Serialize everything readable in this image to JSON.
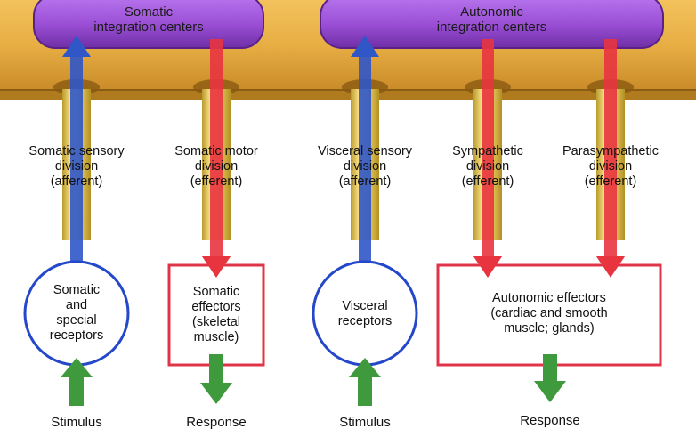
{
  "centers": {
    "somatic": {
      "line1": "Somatic",
      "line2": "integration centers"
    },
    "autonomic": {
      "line1": "Autonomic",
      "line2": "integration centers"
    }
  },
  "divisions": [
    {
      "line1": "Somatic sensory",
      "line2": "division",
      "line3": "(afferent)"
    },
    {
      "line1": "Somatic motor",
      "line2": "division",
      "line3": "(efferent)"
    },
    {
      "line1": "Visceral sensory",
      "line2": "division",
      "line3": "(afferent)"
    },
    {
      "line1": "Sympathetic",
      "line2": "division",
      "line3": "(efferent)"
    },
    {
      "line1": "Parasympathetic",
      "line2": "division",
      "line3": "(efferent)"
    }
  ],
  "nodes": {
    "somatic_receptors": {
      "line1": "Somatic",
      "line2": "and",
      "line3": "special",
      "line4": "receptors"
    },
    "somatic_effectors": {
      "line1": "Somatic",
      "line2": "effectors",
      "line3": "(skeletal",
      "line4": "muscle)"
    },
    "visceral_receptors": {
      "line1": "Visceral",
      "line2": "receptors"
    },
    "autonomic_effectors": {
      "line1": "Autonomic effectors",
      "line2": "(cardiac and smooth",
      "line3": "muscle; glands)"
    }
  },
  "captions": {
    "stimulus_1": "Stimulus",
    "response_1": "Response",
    "stimulus_2": "Stimulus",
    "response_2": "Response"
  },
  "colors": {
    "board": "#e9b24a",
    "pill": "#9b4fd6",
    "afferent": "#2f57c8",
    "efferent": "#e8343f",
    "input_output": "#3e9a3c",
    "receptor_outline": "#2448c9",
    "effector_outline": "#e0344a"
  }
}
